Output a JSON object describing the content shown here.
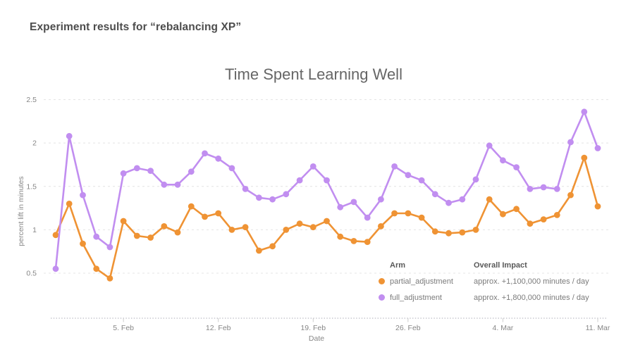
{
  "page": {
    "heading": "Experiment results for “rebalancing XP”"
  },
  "chart": {
    "title": "Time Spent Learning Well",
    "xlabel": "Date",
    "ylabel": "percent lift in minutes"
  },
  "legend": {
    "arm_header": "Arm",
    "impact_header": "Overall Impact",
    "items": [
      {
        "label": "partial_adjustment",
        "impact": "approx. +1,100,000 minutes / day",
        "color": "#EF9334"
      },
      {
        "label": "full_adjustment",
        "impact": "approx. +1,800,000 minutes / day",
        "color": "#C18EF0"
      }
    ]
  },
  "chart_data": {
    "type": "line",
    "title": "Time Spent Learning Well",
    "xlabel": "Date",
    "ylabel": "percent lift in minutes",
    "grid": "dashed-horizontal",
    "legend_position": "bottom-right-inside",
    "x": [
      "31. Jan",
      "1. Feb",
      "2. Feb",
      "3. Feb",
      "4. Feb",
      "5. Feb",
      "6. Feb",
      "7. Feb",
      "8. Feb",
      "9. Feb",
      "10. Feb",
      "11. Feb",
      "12. Feb",
      "13. Feb",
      "14. Feb",
      "15. Feb",
      "16. Feb",
      "17. Feb",
      "18. Feb",
      "19. Feb",
      "20. Feb",
      "21. Feb",
      "22. Feb",
      "23. Feb",
      "24. Feb",
      "25. Feb",
      "26. Feb",
      "27. Feb",
      "28. Feb",
      "29. Feb",
      "1. Mar",
      "2. Mar",
      "3. Mar",
      "4. Mar",
      "5. Mar",
      "6. Mar",
      "7. Mar",
      "8. Mar",
      "9. Mar",
      "10. Mar",
      "11. Mar"
    ],
    "x_tick_labels": [
      "5. Feb",
      "12. Feb",
      "19. Feb",
      "26. Feb",
      "4. Mar",
      "11. Mar"
    ],
    "x_tick_indices": [
      5,
      12,
      19,
      26,
      33,
      40
    ],
    "y_ticks": [
      0.5,
      1,
      1.5,
      2,
      2.5
    ],
    "y_tick_labels": [
      "0.5",
      "1",
      "1.5",
      "2",
      "2.5"
    ],
    "ylim": [
      0.5,
      2.5
    ],
    "series": [
      {
        "name": "partial_adjustment",
        "color": "#EF9334",
        "values": [
          0.94,
          1.3,
          0.84,
          0.55,
          0.44,
          1.1,
          0.93,
          0.91,
          1.04,
          0.97,
          1.27,
          1.15,
          1.19,
          1.0,
          1.03,
          0.76,
          0.81,
          1.0,
          1.07,
          1.03,
          1.1,
          0.92,
          0.87,
          0.86,
          1.04,
          1.19,
          1.19,
          1.14,
          0.98,
          0.96,
          0.97,
          1.0,
          1.35,
          1.18,
          1.24,
          1.07,
          1.12,
          1.17,
          1.4,
          1.83,
          1.27
        ]
      },
      {
        "name": "full_adjustment",
        "color": "#C18EF0",
        "values": [
          0.55,
          2.08,
          1.4,
          0.92,
          0.8,
          1.65,
          1.71,
          1.68,
          1.52,
          1.52,
          1.67,
          1.88,
          1.82,
          1.71,
          1.47,
          1.37,
          1.35,
          1.41,
          1.57,
          1.73,
          1.57,
          1.26,
          1.32,
          1.14,
          1.35,
          1.73,
          1.63,
          1.57,
          1.41,
          1.31,
          1.35,
          1.58,
          1.97,
          1.8,
          1.72,
          1.47,
          1.49,
          1.47,
          2.01,
          2.36,
          1.94
        ]
      }
    ]
  }
}
